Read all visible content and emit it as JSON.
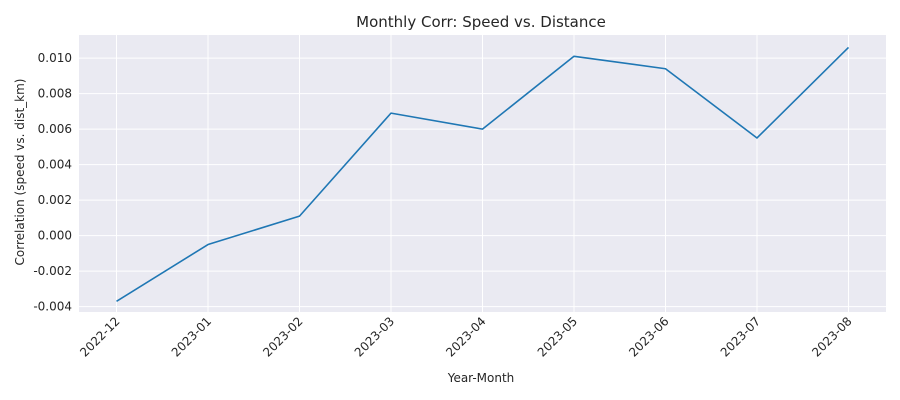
{
  "chart_data": {
    "type": "line",
    "title": "Monthly Corr: Speed vs. Distance",
    "xlabel": "Year-Month",
    "ylabel": "Correlation (speed vs. dist_km)",
    "categories": [
      "2022-12",
      "2023-01",
      "2023-02",
      "2023-03",
      "2023-04",
      "2023-05",
      "2023-06",
      "2023-07",
      "2023-08"
    ],
    "series": [
      {
        "values": [
          -0.0037,
          -0.0005,
          0.0011,
          0.0069,
          0.006,
          0.0101,
          0.0094,
          0.0055,
          0.0106
        ],
        "color": "#1f77b4"
      }
    ],
    "yticks": [
      -0.004,
      -0.002,
      0.0,
      0.002,
      0.004,
      0.006,
      0.008,
      0.01
    ],
    "ytick_labels": [
      "-0.004",
      "-0.002",
      "0.000",
      "0.002",
      "0.004",
      "0.006",
      "0.008",
      "0.010"
    ],
    "ylim": [
      -0.0043,
      0.0113
    ],
    "grid": true,
    "x_tick_rotation": 45,
    "background_color": "#eaeaf2",
    "grid_color": "#ffffff"
  }
}
